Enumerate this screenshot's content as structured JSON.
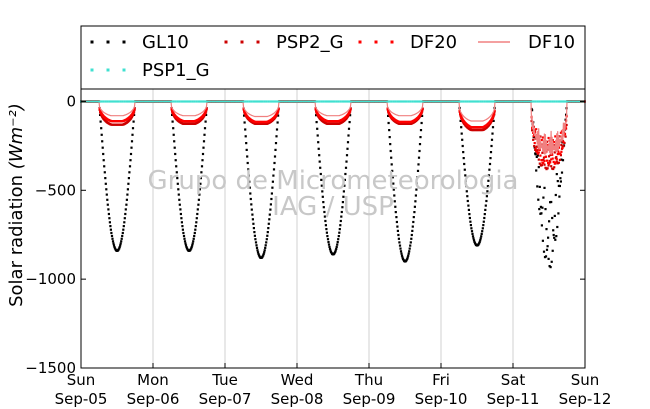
{
  "chart_data": {
    "type": "scatter",
    "title": "",
    "ylabel": "Solar radiation",
    "ylabel_unit": "(Wm⁻²)",
    "xlabel": "",
    "ylim": [
      -1500,
      70
    ],
    "yticks": [
      0,
      -500,
      -1000,
      -1500
    ],
    "ytick_labels": [
      "0",
      "−500",
      "−1000",
      "−1500"
    ],
    "xlim": [
      "2010-09-05",
      "2010-09-12"
    ],
    "xticks": [
      {
        "day": "Sun",
        "date": "Sep-05"
      },
      {
        "day": "Mon",
        "date": "Sep-06"
      },
      {
        "day": "Tue",
        "date": "Sep-07"
      },
      {
        "day": "Wed",
        "date": "Sep-08"
      },
      {
        "day": "Thu",
        "date": "Sep-09"
      },
      {
        "day": "Fri",
        "date": "Sep-10"
      },
      {
        "day": "Sat",
        "date": "Sep-11"
      },
      {
        "day": "Sun",
        "date": "Sep-12"
      }
    ],
    "grid": "vertical",
    "legend": "top",
    "watermark_line1": "Grupo de Micrometeorologia",
    "watermark_line2": "IAG / USP",
    "series": [
      {
        "name": "GL10",
        "style": "dotted",
        "color": "#000000",
        "daily_min": [
          -840,
          -840,
          -880,
          -860,
          -900,
          -810,
          -940
        ]
      },
      {
        "name": "PSP2_G",
        "style": "dotted",
        "color": "#cc0000",
        "daily_min": [
          -130,
          -125,
          -125,
          -125,
          -125,
          -160,
          -380
        ]
      },
      {
        "name": "DF20",
        "style": "dotted",
        "color": "#ff0000",
        "daily_min": [
          -110,
          -110,
          -115,
          -110,
          -115,
          -145,
          -350
        ]
      },
      {
        "name": "DF10",
        "style": "line",
        "color": "#f08080",
        "daily_min": [
          -80,
          -80,
          -85,
          -80,
          -80,
          -110,
          -300
        ]
      },
      {
        "name": "PSP1_G",
        "style": "dotted",
        "color": "#40e0d0",
        "daily_min": [
          0,
          0,
          0,
          0,
          0,
          0,
          0
        ]
      }
    ]
  }
}
